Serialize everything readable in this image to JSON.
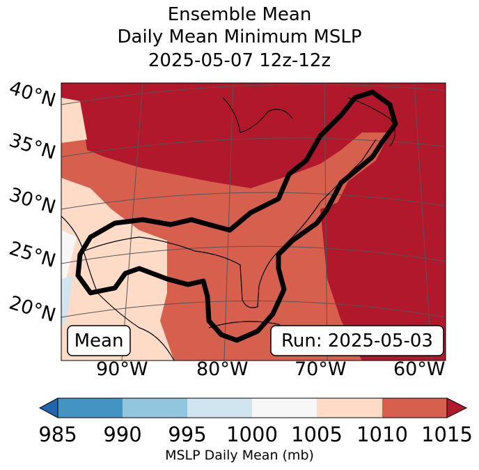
{
  "title": {
    "line1": "Ensemble Mean",
    "line2": "Daily Mean Minimum MSLP",
    "line3": "2025-05-07 12z-12z"
  },
  "map": {
    "lat_labels": [
      "40°N",
      "35°N",
      "30°N",
      "25°N",
      "20°N"
    ],
    "lon_labels": [
      "90°W",
      "80°W",
      "70°W",
      "60°W"
    ],
    "box_mean": "Mean",
    "box_run": "Run: 2025-05-03"
  },
  "colorbar": {
    "ticks": [
      "985",
      "990",
      "995",
      "1000",
      "1005",
      "1010",
      "1015"
    ],
    "label": "MSLP Daily Mean (mb)",
    "colors": [
      "#2166ac",
      "#4393c3",
      "#92c5de",
      "#d1e5f0",
      "#f7f7f7",
      "#fddbc7",
      "#d6604d",
      "#b2182b"
    ]
  },
  "legend_colors": {
    "contour": "#000000",
    "coast": "#000000",
    "grid": "#555555"
  }
}
